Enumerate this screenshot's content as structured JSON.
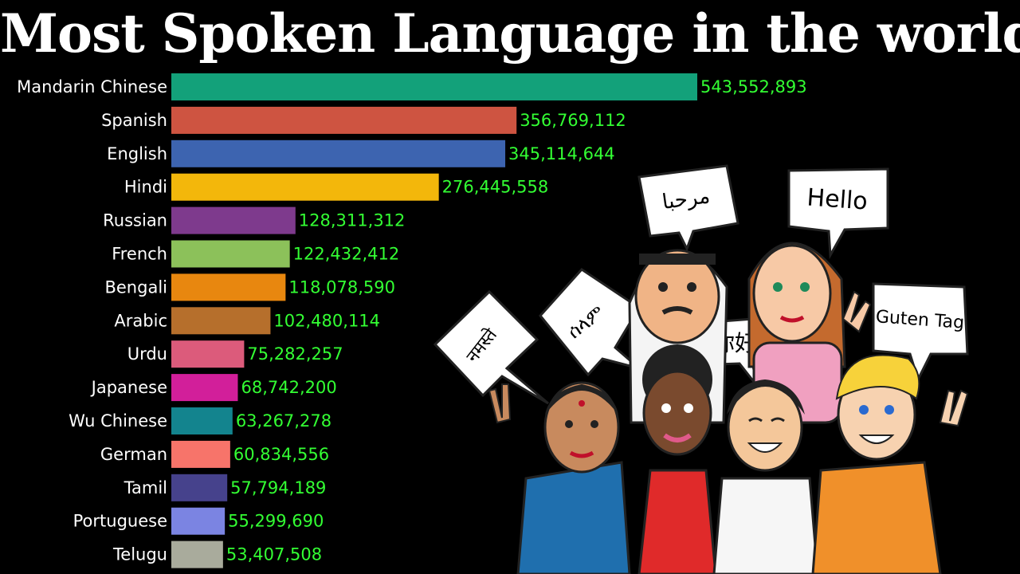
{
  "chart_data": {
    "type": "bar",
    "orientation": "horizontal",
    "title": "Most Spoken Language in the world",
    "categories": [
      "Mandarin Chinese",
      "Spanish",
      "English",
      "Hindi",
      "Russian",
      "French",
      "Bengali",
      "Arabic",
      "Urdu",
      "Japanese",
      "Wu Chinese",
      "German",
      "Tamil",
      "Portuguese",
      "Telugu"
    ],
    "values": [
      543552893,
      356769112,
      345114644,
      276445558,
      128311312,
      122432412,
      118078590,
      102480114,
      75282257,
      68742200,
      63267278,
      60834556,
      57794189,
      55299690,
      53407508
    ],
    "value_labels": [
      "543,552,893",
      "356,769,112",
      "345,114,644",
      "276,445,558",
      "128,311,312",
      "122,432,412",
      "118,078,590",
      "102,480,114",
      "75,282,257",
      "68,742,200",
      "63,267,278",
      "60,834,556",
      "57,794,189",
      "55,299,690",
      "53,407,508"
    ],
    "colors": [
      "#13a17a",
      "#ce5441",
      "#3d64b0",
      "#f3b70b",
      "#7e3a8d",
      "#8cc15a",
      "#e8870f",
      "#b66f2c",
      "#dc5b7b",
      "#d21f9a",
      "#13848e",
      "#f7746a",
      "#46428c",
      "#7b84e2",
      "#a9ab9c"
    ],
    "xlim": [
      0,
      543552893
    ],
    "grid": false,
    "legend": "none"
  },
  "illustration": {
    "bubbles": [
      "مرحبا",
      "Hello",
      "ሰላም",
      "नमस्ते",
      "你好",
      "Guten Tag"
    ]
  }
}
